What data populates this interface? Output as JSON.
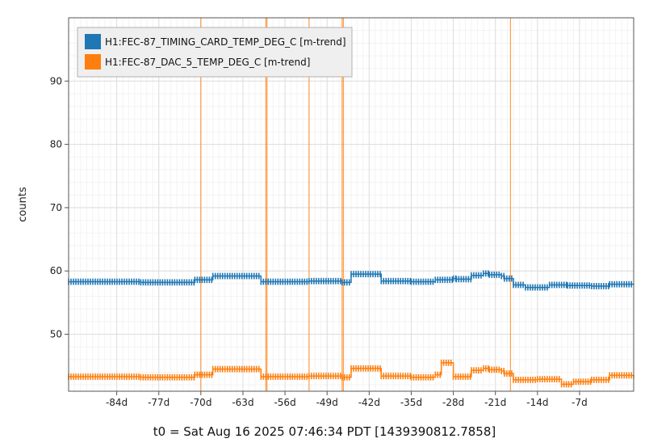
{
  "chart_data": {
    "type": "line",
    "title": "",
    "ylabel": "counts",
    "footer": "t0 = Sat Aug 16 2025 07:46:34 PDT [1439390812.7858]",
    "xlim": [
      -92,
      2
    ],
    "ylim": [
      41,
      100
    ],
    "x_ticks": [
      {
        "value": -84,
        "label": "-84d"
      },
      {
        "value": -77,
        "label": "-77d"
      },
      {
        "value": -70,
        "label": "-70d"
      },
      {
        "value": -63,
        "label": "-63d"
      },
      {
        "value": -56,
        "label": "-56d"
      },
      {
        "value": -49,
        "label": "-49d"
      },
      {
        "value": -42,
        "label": "-42d"
      },
      {
        "value": -35,
        "label": "-35d"
      },
      {
        "value": -28,
        "label": "-28d"
      },
      {
        "value": -21,
        "label": "-21d"
      },
      {
        "value": -14,
        "label": "-14d"
      },
      {
        "value": -7,
        "label": "-7d"
      }
    ],
    "y_ticks": [
      {
        "value": 50,
        "label": "50"
      },
      {
        "value": 60,
        "label": "60"
      },
      {
        "value": 70,
        "label": "70"
      },
      {
        "value": 80,
        "label": "80"
      },
      {
        "value": 90,
        "label": "90"
      }
    ],
    "grid": true,
    "legend_position": "top-left",
    "series": [
      {
        "name": "H1:FEC-87_TIMING_CARD_TEMP_DEG_C [m-trend]",
        "color": "#1f77b4",
        "x": [
          -92,
          -80,
          -71,
          -68,
          -60,
          -52,
          -46.5,
          -45,
          -40,
          -35,
          -31,
          -28,
          -27.5,
          -25,
          -23,
          -22,
          -20,
          -19.5,
          -18,
          -16,
          -12,
          -9,
          -5,
          -2,
          2
        ],
        "y": [
          58.3,
          58.2,
          58.6,
          59.2,
          58.3,
          58.4,
          58.2,
          59.5,
          58.4,
          58.3,
          58.6,
          58.8,
          58.7,
          59.3,
          59.6,
          59.4,
          59.2,
          58.8,
          57.8,
          57.4,
          57.8,
          57.7,
          57.6,
          57.9,
          57.8
        ]
      },
      {
        "name": "H1:FEC-87_DAC_5_TEMP_DEG_C [m-trend]",
        "color": "#ff7f0e",
        "x": [
          -92,
          -80,
          -71,
          -68,
          -60,
          -52,
          -46.5,
          -45,
          -40,
          -35,
          -31,
          -30,
          -28,
          -25,
          -23,
          -22,
          -20,
          -19.5,
          -18,
          -14,
          -10,
          -8,
          -5,
          -2,
          2
        ],
        "y": [
          43.3,
          43.2,
          43.6,
          44.5,
          43.3,
          43.4,
          43.2,
          44.6,
          43.4,
          43.2,
          43.6,
          45.5,
          43.3,
          44.3,
          44.6,
          44.4,
          44.2,
          43.8,
          42.8,
          42.9,
          42.1,
          42.5,
          42.8,
          43.5,
          43.0
        ]
      }
    ],
    "vertical_markers": [
      -70,
      -59,
      -59.2,
      -52,
      -46.5,
      -46.3,
      -18.5
    ]
  }
}
